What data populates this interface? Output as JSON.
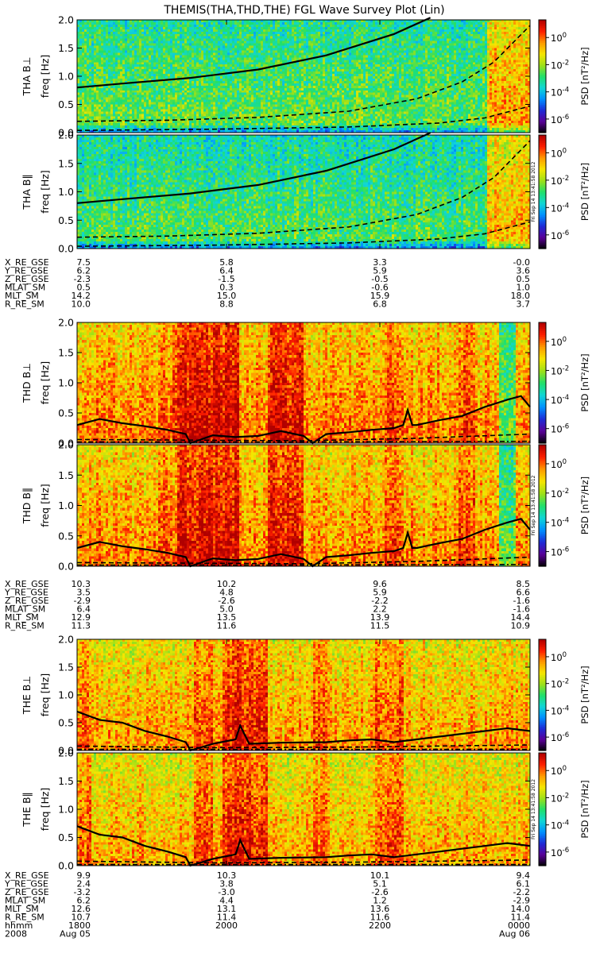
{
  "title": "THEMIS(THA,THD,THE) FGL Wave Survey Plot (Lin)",
  "timestamp": "Fri Sep 14 13:41:58 2012",
  "colorbar": {
    "label": "PSD [nT²/Hz]",
    "ticks": [
      {
        "base": "10",
        "exp": "0",
        "value": 0
      },
      {
        "base": "10",
        "exp": "-2",
        "value": -2
      },
      {
        "base": "10",
        "exp": "-4",
        "value": -4
      },
      {
        "base": "10",
        "exp": "-6",
        "value": -6
      }
    ],
    "range": [
      -7,
      1.3
    ],
    "colors": [
      "#000000",
      "#5a0098",
      "#1e2ad6",
      "#0090ff",
      "#10d6d6",
      "#20e06a",
      "#9ee018",
      "#f6e600",
      "#ff9a00",
      "#ff1e00",
      "#b00000"
    ]
  },
  "freq_axis": {
    "label": "freq [Hz]",
    "ticks": [
      "0.0",
      "0.5",
      "1.0",
      "1.5",
      "2.0"
    ],
    "range": [
      0,
      2
    ]
  },
  "chart_data": [
    {
      "type": "heatmap",
      "probe": "THA",
      "panels": [
        {
          "label": "THA B⊥",
          "base_level": -3.2,
          "bursts": [
            {
              "x0": 0.905,
              "x1": 1.0,
              "amp": 1.9
            }
          ],
          "lines": [
            {
              "style": "solid",
              "x": [
                0,
                0.1,
                0.25,
                0.4,
                0.55,
                0.7,
                0.78
              ],
              "y": [
                0.8,
                0.87,
                0.97,
                1.12,
                1.37,
                1.75,
                2.05
              ]
            },
            {
              "style": "dashed",
              "x": [
                0,
                0.2,
                0.4,
                0.6,
                0.75,
                0.85,
                0.92,
                1.0
              ],
              "y": [
                0.2,
                0.22,
                0.27,
                0.38,
                0.6,
                0.9,
                1.25,
                1.9
              ]
            },
            {
              "style": "dashed",
              "x": [
                0,
                0.3,
                0.6,
                0.8,
                0.9,
                1.0
              ],
              "y": [
                0.04,
                0.06,
                0.1,
                0.17,
                0.26,
                0.47
              ]
            }
          ]
        },
        {
          "label": "THA B∥",
          "base_level": -3.4,
          "bursts": [
            {
              "x0": 0.905,
              "x1": 1.0,
              "amp": 1.9
            }
          ],
          "lines": [
            {
              "style": "solid",
              "x": [
                0,
                0.1,
                0.25,
                0.4,
                0.55,
                0.7,
                0.78
              ],
              "y": [
                0.8,
                0.87,
                0.97,
                1.12,
                1.37,
                1.75,
                2.05
              ]
            },
            {
              "style": "dashed",
              "x": [
                0,
                0.2,
                0.4,
                0.6,
                0.75,
                0.85,
                0.92,
                1.0
              ],
              "y": [
                0.2,
                0.22,
                0.27,
                0.38,
                0.6,
                0.9,
                1.25,
                1.9
              ]
            },
            {
              "style": "dashed",
              "x": [
                0,
                0.3,
                0.6,
                0.8,
                0.9,
                1.0
              ],
              "y": [
                0.04,
                0.06,
                0.1,
                0.17,
                0.26,
                0.47
              ]
            }
          ]
        }
      ],
      "ephemeris": {
        "labels": [
          "X_RE_GSE",
          "Y_RE_GSE",
          "Z_RE_GSE",
          "MLAT_SM",
          "MLT_SM",
          "R_RE_SM"
        ],
        "columns": [
          [
            "7.5",
            "6.2",
            "-2.3",
            "0.5",
            "14.2",
            "10.0"
          ],
          [
            "5.8",
            "6.4",
            "-1.5",
            "0.3",
            "15.0",
            "8.8"
          ],
          [
            "3.3",
            "5.9",
            "-0.5",
            "-0.6",
            "15.9",
            "6.8"
          ],
          [
            "-0.0",
            "3.6",
            "0.5",
            "1.0",
            "18.0",
            "3.7"
          ]
        ]
      }
    },
    {
      "type": "heatmap",
      "probe": "THD",
      "panels": [
        {
          "label": "THD B⊥",
          "base_level": -1.0,
          "bursts": [
            {
              "x0": 0.22,
              "x1": 0.36,
              "amp": 1.3
            },
            {
              "x0": 0.42,
              "x1": 0.5,
              "amp": 1.1
            },
            {
              "x0": 0.18,
              "x1": 0.22,
              "amp": 0.5
            },
            {
              "x0": 0.68,
              "x1": 0.72,
              "amp": 0.7
            },
            {
              "x0": 0.84,
              "x1": 0.88,
              "amp": 0.7
            },
            {
              "x0": 0.93,
              "x1": 0.97,
              "amp": -2.0
            }
          ],
          "lines": [
            {
              "style": "solid",
              "x": [
                0,
                0.05,
                0.1,
                0.15,
                0.2,
                0.24,
                0.25,
                0.3,
                0.35,
                0.4,
                0.45,
                0.5,
                0.52,
                0.55,
                0.6,
                0.65,
                0.7,
                0.72,
                0.73,
                0.74,
                0.75,
                0.8,
                0.85,
                0.9,
                0.95,
                0.98,
                1.0
              ],
              "y": [
                0.3,
                0.4,
                0.33,
                0.28,
                0.22,
                0.15,
                0.0,
                0.13,
                0.1,
                0.12,
                0.2,
                0.12,
                0.0,
                0.15,
                0.18,
                0.22,
                0.25,
                0.3,
                0.55,
                0.3,
                0.3,
                0.38,
                0.45,
                0.6,
                0.72,
                0.78,
                0.6
              ]
            },
            {
              "style": "dashed",
              "x": [
                0,
                0.5,
                0.75,
                1.0
              ],
              "y": [
                0.06,
                0.04,
                0.08,
                0.15
              ]
            },
            {
              "style": "dashdot",
              "x": [
                0,
                0.5,
                1.0
              ],
              "y": [
                0.02,
                0.02,
                0.03
              ]
            }
          ]
        },
        {
          "label": "THD B∥",
          "base_level": -1.1,
          "bursts": [
            {
              "x0": 0.22,
              "x1": 0.36,
              "amp": 1.3
            },
            {
              "x0": 0.42,
              "x1": 0.5,
              "amp": 1.1
            },
            {
              "x0": 0.18,
              "x1": 0.22,
              "amp": 0.5
            },
            {
              "x0": 0.68,
              "x1": 0.72,
              "amp": 0.7
            },
            {
              "x0": 0.84,
              "x1": 0.88,
              "amp": 0.7
            },
            {
              "x0": 0.93,
              "x1": 0.97,
              "amp": -2.0
            }
          ],
          "lines": [
            {
              "style": "solid",
              "x": [
                0,
                0.05,
                0.1,
                0.15,
                0.2,
                0.24,
                0.25,
                0.3,
                0.35,
                0.4,
                0.45,
                0.5,
                0.52,
                0.55,
                0.6,
                0.65,
                0.7,
                0.72,
                0.73,
                0.74,
                0.75,
                0.8,
                0.85,
                0.9,
                0.95,
                0.98,
                1.0
              ],
              "y": [
                0.3,
                0.4,
                0.33,
                0.28,
                0.22,
                0.15,
                0.0,
                0.13,
                0.1,
                0.12,
                0.2,
                0.12,
                0.0,
                0.15,
                0.18,
                0.22,
                0.25,
                0.3,
                0.55,
                0.3,
                0.3,
                0.38,
                0.45,
                0.6,
                0.72,
                0.78,
                0.6
              ]
            },
            {
              "style": "dashed",
              "x": [
                0,
                0.5,
                0.75,
                1.0
              ],
              "y": [
                0.06,
                0.04,
                0.08,
                0.15
              ]
            },
            {
              "style": "dashdot",
              "x": [
                0,
                0.5,
                1.0
              ],
              "y": [
                0.02,
                0.02,
                0.03
              ]
            }
          ]
        }
      ],
      "ephemeris": {
        "labels": [
          "X_RE_GSE",
          "Y_RE_GSE",
          "Z_RE_GSE",
          "MLAT_SM",
          "MLT_SM",
          "R_RE_SM"
        ],
        "columns": [
          [
            "10.3",
            "3.5",
            "-2.9",
            "6.4",
            "12.9",
            "11.3"
          ],
          [
            "10.2",
            "4.8",
            "-2.6",
            "5.0",
            "13.5",
            "11.6"
          ],
          [
            "9.6",
            "5.9",
            "-2.2",
            "2.2",
            "13.9",
            "11.5"
          ],
          [
            "8.5",
            "6.6",
            "-1.6",
            "-1.6",
            "14.4",
            "10.9"
          ]
        ]
      }
    },
    {
      "type": "heatmap",
      "probe": "THE",
      "panels": [
        {
          "label": "THE B⊥",
          "base_level": -1.3,
          "bursts": [
            {
              "x0": 0.32,
              "x1": 0.42,
              "amp": 1.3
            },
            {
              "x0": 0.26,
              "x1": 0.3,
              "amp": 0.8
            },
            {
              "x0": 0.52,
              "x1": 0.56,
              "amp": 0.7
            },
            {
              "x0": 0.66,
              "x1": 0.72,
              "amp": 0.8
            },
            {
              "x0": 0.0,
              "x1": 0.03,
              "amp": 0.6
            }
          ],
          "lines": [
            {
              "style": "solid",
              "x": [
                0,
                0.05,
                0.1,
                0.15,
                0.2,
                0.24,
                0.25,
                0.3,
                0.35,
                0.36,
                0.38,
                0.45,
                0.55,
                0.6,
                0.65,
                0.7,
                0.75,
                0.8,
                0.85,
                0.9,
                0.95,
                1.0
              ],
              "y": [
                0.7,
                0.55,
                0.5,
                0.35,
                0.25,
                0.15,
                0.0,
                0.12,
                0.2,
                0.45,
                0.12,
                0.14,
                0.15,
                0.18,
                0.2,
                0.15,
                0.2,
                0.25,
                0.3,
                0.35,
                0.4,
                0.35
              ]
            },
            {
              "style": "dashed",
              "x": [
                0,
                0.3,
                0.6,
                1.0
              ],
              "y": [
                0.08,
                0.05,
                0.06,
                0.1
              ]
            },
            {
              "style": "dashdot",
              "x": [
                0,
                0.5,
                1.0
              ],
              "y": [
                0.02,
                0.02,
                0.02
              ]
            }
          ]
        },
        {
          "label": "THE B∥",
          "base_level": -1.4,
          "bursts": [
            {
              "x0": 0.32,
              "x1": 0.42,
              "amp": 1.3
            },
            {
              "x0": 0.26,
              "x1": 0.3,
              "amp": 0.8
            },
            {
              "x0": 0.52,
              "x1": 0.56,
              "amp": 0.7
            },
            {
              "x0": 0.66,
              "x1": 0.72,
              "amp": 0.8
            },
            {
              "x0": 0.0,
              "x1": 0.03,
              "amp": 0.6
            }
          ],
          "lines": [
            {
              "style": "solid",
              "x": [
                0,
                0.05,
                0.1,
                0.15,
                0.2,
                0.24,
                0.25,
                0.3,
                0.35,
                0.36,
                0.38,
                0.45,
                0.55,
                0.6,
                0.65,
                0.7,
                0.75,
                0.8,
                0.85,
                0.9,
                0.95,
                1.0
              ],
              "y": [
                0.7,
                0.55,
                0.5,
                0.35,
                0.25,
                0.15,
                0.0,
                0.12,
                0.2,
                0.45,
                0.12,
                0.14,
                0.15,
                0.18,
                0.2,
                0.15,
                0.2,
                0.25,
                0.3,
                0.35,
                0.4,
                0.35
              ]
            },
            {
              "style": "dashed",
              "x": [
                0,
                0.3,
                0.6,
                1.0
              ],
              "y": [
                0.08,
                0.05,
                0.06,
                0.1
              ]
            },
            {
              "style": "dashdot",
              "x": [
                0,
                0.5,
                1.0
              ],
              "y": [
                0.02,
                0.02,
                0.02
              ]
            }
          ]
        }
      ],
      "ephemeris": {
        "labels": [
          "X_RE_GSE",
          "Y_RE_GSE",
          "Z_RE_GSE",
          "MLAT_SM",
          "MLT_SM",
          "R_RE_SM",
          "hhmm",
          "2008"
        ],
        "columns": [
          [
            "9.9",
            "2.4",
            "-3.2",
            "6.2",
            "12.6",
            "10.7",
            "1800",
            "Aug 05"
          ],
          [
            "10.3",
            "3.8",
            "-3.0",
            "4.4",
            "13.1",
            "11.4",
            "2000",
            ""
          ],
          [
            "10.1",
            "5.1",
            "-2.6",
            "1.2",
            "13.6",
            "11.6",
            "2200",
            ""
          ],
          [
            "9.4",
            "6.1",
            "-2.2",
            "-2.9",
            "14.0",
            "11.4",
            "0000",
            "Aug 06"
          ]
        ]
      }
    }
  ]
}
